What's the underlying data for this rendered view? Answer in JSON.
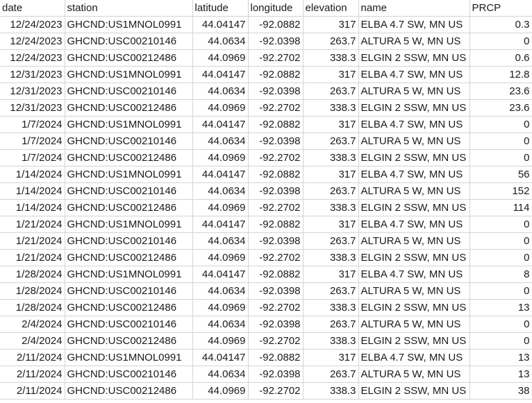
{
  "columns": [
    "date",
    "station",
    "latitude",
    "longitude",
    "elevation",
    "name",
    "PRCP"
  ],
  "rows": [
    [
      "12/24/2023",
      "GHCND:US1MNOL0991",
      "44.04147",
      "-92.0882",
      "317",
      "ELBA 4.7 SW, MN US",
      "0.3"
    ],
    [
      "12/24/2023",
      "GHCND:USC00210146",
      "44.0634",
      "-92.0398",
      "263.7",
      "ALTURA 5 W, MN US",
      "0"
    ],
    [
      "12/24/2023",
      "GHCND:USC00212486",
      "44.0969",
      "-92.2702",
      "338.3",
      "ELGIN 2 SSW, MN US",
      "0.6"
    ],
    [
      "12/31/2023",
      "GHCND:US1MNOL0991",
      "44.04147",
      "-92.0882",
      "317",
      "ELBA 4.7 SW, MN US",
      "12.8"
    ],
    [
      "12/31/2023",
      "GHCND:USC00210146",
      "44.0634",
      "-92.0398",
      "263.7",
      "ALTURA 5 W, MN US",
      "23.6"
    ],
    [
      "12/31/2023",
      "GHCND:USC00212486",
      "44.0969",
      "-92.2702",
      "338.3",
      "ELGIN 2 SSW, MN US",
      "23.6"
    ],
    [
      "1/7/2024",
      "GHCND:US1MNOL0991",
      "44.04147",
      "-92.0882",
      "317",
      "ELBA 4.7 SW, MN US",
      "0"
    ],
    [
      "1/7/2024",
      "GHCND:USC00210146",
      "44.0634",
      "-92.0398",
      "263.7",
      "ALTURA 5 W, MN US",
      "0"
    ],
    [
      "1/7/2024",
      "GHCND:USC00212486",
      "44.0969",
      "-92.2702",
      "338.3",
      "ELGIN 2 SSW, MN US",
      "0"
    ],
    [
      "1/14/2024",
      "GHCND:US1MNOL0991",
      "44.04147",
      "-92.0882",
      "317",
      "ELBA 4.7 SW, MN US",
      "56"
    ],
    [
      "1/14/2024",
      "GHCND:USC00210146",
      "44.0634",
      "-92.0398",
      "263.7",
      "ALTURA 5 W, MN US",
      "152"
    ],
    [
      "1/14/2024",
      "GHCND:USC00212486",
      "44.0969",
      "-92.2702",
      "338.3",
      "ELGIN 2 SSW, MN US",
      "114"
    ],
    [
      "1/21/2024",
      "GHCND:US1MNOL0991",
      "44.04147",
      "-92.0882",
      "317",
      "ELBA 4.7 SW, MN US",
      "0"
    ],
    [
      "1/21/2024",
      "GHCND:USC00210146",
      "44.0634",
      "-92.0398",
      "263.7",
      "ALTURA 5 W, MN US",
      "0"
    ],
    [
      "1/21/2024",
      "GHCND:USC00212486",
      "44.0969",
      "-92.2702",
      "338.3",
      "ELGIN 2 SSW, MN US",
      "0"
    ],
    [
      "1/28/2024",
      "GHCND:US1MNOL0991",
      "44.04147",
      "-92.0882",
      "317",
      "ELBA 4.7 SW, MN US",
      "8"
    ],
    [
      "1/28/2024",
      "GHCND:USC00210146",
      "44.0634",
      "-92.0398",
      "263.7",
      "ALTURA 5 W, MN US",
      "0"
    ],
    [
      "1/28/2024",
      "GHCND:USC00212486",
      "44.0969",
      "-92.2702",
      "338.3",
      "ELGIN 2 SSW, MN US",
      "13"
    ],
    [
      "2/4/2024",
      "GHCND:USC00210146",
      "44.0634",
      "-92.0398",
      "263.7",
      "ALTURA 5 W, MN US",
      "0"
    ],
    [
      "2/4/2024",
      "GHCND:USC00212486",
      "44.0969",
      "-92.2702",
      "338.3",
      "ELGIN 2 SSW, MN US",
      "0"
    ],
    [
      "2/11/2024",
      "GHCND:US1MNOL0991",
      "44.04147",
      "-92.0882",
      "317",
      "ELBA 4.7 SW, MN US",
      "13"
    ],
    [
      "2/11/2024",
      "GHCND:USC00210146",
      "44.0634",
      "-92.0398",
      "263.7",
      "ALTURA 5 W, MN US",
      "13"
    ],
    [
      "2/11/2024",
      "GHCND:USC00212486",
      "44.0969",
      "-92.2702",
      "338.3",
      "ELGIN 2 SSW, MN US",
      "38"
    ]
  ]
}
